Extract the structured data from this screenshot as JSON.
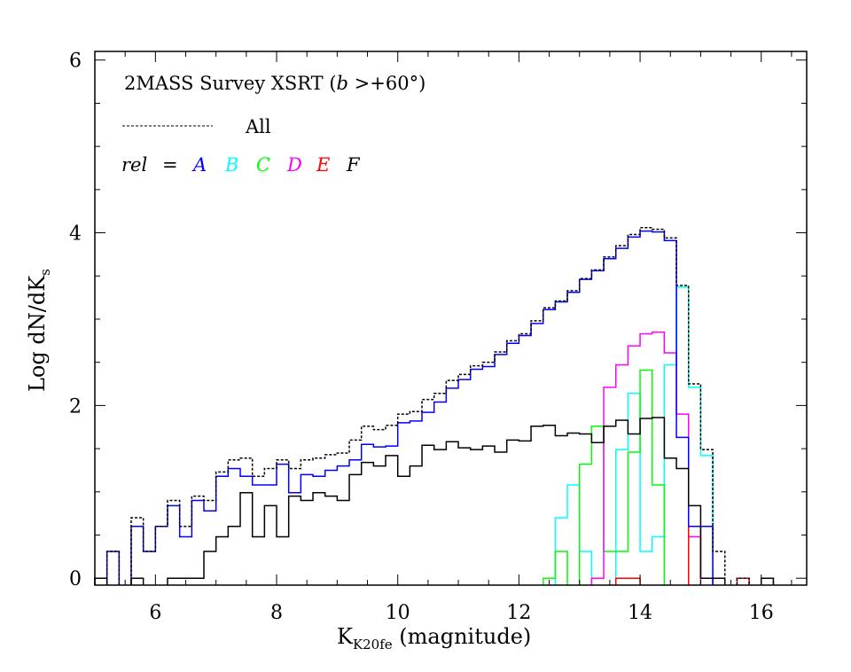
{
  "chart_data": {
    "type": "histogram",
    "title_prefix": "2MASS Survey XSRT (",
    "title_var": "b",
    "title_suffix": " >+60°)",
    "xlabel_main": "K",
    "xlabel_sub": "K20fe",
    "xlabel_suffix": " (magnitude)",
    "ylabel_main": "Log dN/dK",
    "ylabel_sub": "s",
    "xlim": [
      5.0,
      16.75
    ],
    "ylim": [
      -0.08,
      6.1
    ],
    "xticks_major": [
      6,
      8,
      10,
      12,
      14,
      16
    ],
    "xtick_minor_step": 0.5,
    "yticks_major": [
      0,
      2,
      4,
      6
    ],
    "ytick_minor_step": 0.5,
    "bin_start": 5.0,
    "bin_width": 0.2,
    "legend": {
      "all_label": "All",
      "rel_label": "rel",
      "equals": "=",
      "placement": "top-left"
    },
    "series": [
      {
        "name": "All",
        "legend": "All",
        "color": "#000000",
        "style": "dashed",
        "values": [
          0,
          0.31,
          null,
          0.7,
          0.31,
          0.6,
          0.9,
          0.6,
          0.95,
          0.9,
          1.23,
          1.37,
          1.39,
          1.18,
          1.27,
          1.37,
          1.27,
          1.37,
          1.39,
          1.43,
          1.45,
          1.6,
          1.76,
          1.72,
          1.77,
          1.9,
          1.93,
          2.07,
          2.14,
          2.29,
          2.36,
          2.46,
          2.5,
          2.62,
          2.75,
          2.83,
          2.98,
          3.13,
          3.21,
          3.33,
          3.47,
          3.57,
          3.72,
          3.85,
          3.98,
          4.06,
          4.04,
          3.94,
          3.39,
          2.25,
          1.49,
          0.31,
          null,
          0,
          null,
          0
        ]
      },
      {
        "name": "A",
        "legend": "A",
        "color": "#0000ff",
        "style": "solid",
        "values": [
          null,
          0.31,
          null,
          0.6,
          0.31,
          0.6,
          0.84,
          0.48,
          0.9,
          0.78,
          1.18,
          1.27,
          1.18,
          1.08,
          1.08,
          1.32,
          0.99,
          1.2,
          1.18,
          1.25,
          1.3,
          1.37,
          1.55,
          1.52,
          1.53,
          1.8,
          1.82,
          1.92,
          2.04,
          2.2,
          2.3,
          2.42,
          2.45,
          2.59,
          2.72,
          2.81,
          2.95,
          3.11,
          3.2,
          3.31,
          3.46,
          3.56,
          3.7,
          3.82,
          3.95,
          4.02,
          4.01,
          3.91,
          1.63,
          0.6,
          0.6,
          null,
          null,
          null,
          null,
          null
        ]
      },
      {
        "name": "B",
        "legend": "B",
        "color": "#00ffff",
        "style": "solid",
        "values": [
          null,
          null,
          null,
          null,
          null,
          null,
          null,
          null,
          null,
          null,
          null,
          null,
          null,
          null,
          null,
          null,
          null,
          null,
          null,
          null,
          null,
          null,
          null,
          null,
          null,
          null,
          null,
          null,
          null,
          null,
          null,
          null,
          null,
          null,
          null,
          null,
          null,
          null,
          0.7,
          1.08,
          0.31,
          null,
          null,
          1.49,
          2.14,
          0.31,
          0.48,
          2.47,
          3.37,
          2.21,
          1.42,
          null,
          null,
          null,
          null,
          null
        ]
      },
      {
        "name": "C",
        "legend": "C",
        "color": "#00ff00",
        "style": "solid",
        "values": [
          null,
          null,
          null,
          null,
          null,
          null,
          null,
          null,
          null,
          null,
          null,
          null,
          null,
          null,
          null,
          null,
          null,
          null,
          null,
          null,
          null,
          null,
          null,
          null,
          null,
          null,
          null,
          null,
          null,
          null,
          null,
          null,
          null,
          null,
          null,
          null,
          null,
          0,
          0.31,
          null,
          1.32,
          1.76,
          0.31,
          0.31,
          1.46,
          2.41,
          1.08,
          null,
          null,
          null,
          null,
          null,
          null,
          null,
          null,
          null
        ]
      },
      {
        "name": "D",
        "legend": "D",
        "color": "#ff00ff",
        "style": "solid",
        "values": [
          null,
          null,
          null,
          null,
          null,
          null,
          null,
          null,
          null,
          null,
          null,
          null,
          null,
          null,
          null,
          null,
          null,
          null,
          null,
          null,
          null,
          null,
          null,
          null,
          null,
          null,
          null,
          null,
          null,
          null,
          null,
          null,
          null,
          null,
          null,
          null,
          null,
          null,
          null,
          null,
          null,
          0,
          2.21,
          2.47,
          2.69,
          2.83,
          2.85,
          2.61,
          1.9,
          0.48,
          null,
          null,
          null,
          null,
          null,
          null
        ]
      },
      {
        "name": "E",
        "legend": "E",
        "color": "#ff0000",
        "style": "solid",
        "values": [
          null,
          null,
          null,
          null,
          null,
          null,
          null,
          null,
          null,
          null,
          null,
          null,
          null,
          null,
          null,
          null,
          null,
          null,
          null,
          null,
          null,
          null,
          null,
          null,
          null,
          null,
          null,
          null,
          null,
          null,
          null,
          null,
          null,
          null,
          null,
          null,
          null,
          null,
          null,
          null,
          null,
          null,
          null,
          0,
          0,
          null,
          null,
          null,
          null,
          0.6,
          0,
          null,
          null,
          0,
          null,
          null
        ]
      },
      {
        "name": "F",
        "legend": "F",
        "color": "#000000",
        "style": "solid",
        "values": [
          0,
          null,
          null,
          0,
          null,
          null,
          0,
          0,
          0,
          0.31,
          0.48,
          0.6,
          0.99,
          0.48,
          0.84,
          0.48,
          0.95,
          0.9,
          0.99,
          0.95,
          0.9,
          1.2,
          1.34,
          1.3,
          1.42,
          1.18,
          1.3,
          1.54,
          1.49,
          1.58,
          1.51,
          1.49,
          1.53,
          1.46,
          1.6,
          1.59,
          1.76,
          1.77,
          1.65,
          1.68,
          1.67,
          1.57,
          1.76,
          1.83,
          1.67,
          1.85,
          1.86,
          1.39,
          1.27,
          0.84,
          0,
          0,
          null,
          null,
          null,
          0
        ]
      }
    ]
  }
}
